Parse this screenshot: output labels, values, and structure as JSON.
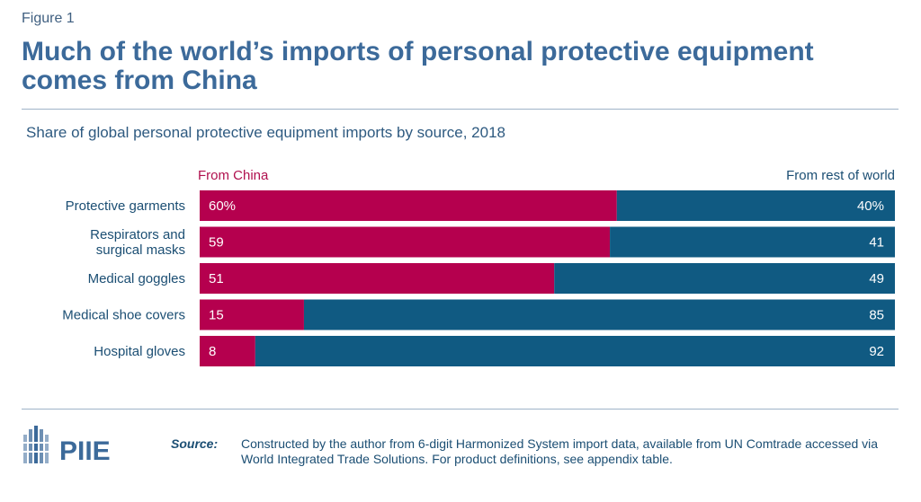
{
  "figure_label": "Figure 1",
  "title": "Much of the world’s imports of personal protective equipment comes from China",
  "colors": {
    "china": "#b5004e",
    "rest_of_world": "#105a82",
    "title": "#3c6a9a",
    "text": "#1b4e73"
  },
  "chart_data": {
    "type": "bar",
    "orientation": "horizontal",
    "stacked": true,
    "subtitle": "Share of global personal protective equipment imports by source, 2018",
    "categories": [
      "Protective garments",
      "Respirators and surgical masks",
      "Medical goggles",
      "Medical shoe covers",
      "Hospital gloves"
    ],
    "category_lines": [
      [
        "Protective garments"
      ],
      [
        "Respirators and",
        "surgical masks"
      ],
      [
        "Medical goggles"
      ],
      [
        "Medical shoe covers"
      ],
      [
        "Hospital gloves"
      ]
    ],
    "series": [
      {
        "name": "From China",
        "values": [
          60,
          59,
          51,
          15,
          8
        ],
        "labels": [
          "60%",
          "59",
          "51",
          "15",
          "8"
        ]
      },
      {
        "name": "From rest of world",
        "values": [
          40,
          41,
          49,
          85,
          92
        ],
        "labels": [
          "40%",
          "41",
          "49",
          "85",
          "92"
        ]
      }
    ],
    "xlim": [
      0,
      100
    ],
    "unit": "%",
    "grid": false,
    "legend_placement": "top"
  },
  "footer": {
    "logo_text": "PIIE",
    "source_label": "Source:",
    "source_text": "Constructed by the author from 6-digit Harmonized System import data, available from UN Comtrade accessed via World Integrated Trade Solutions. For product definitions, see appendix table."
  }
}
